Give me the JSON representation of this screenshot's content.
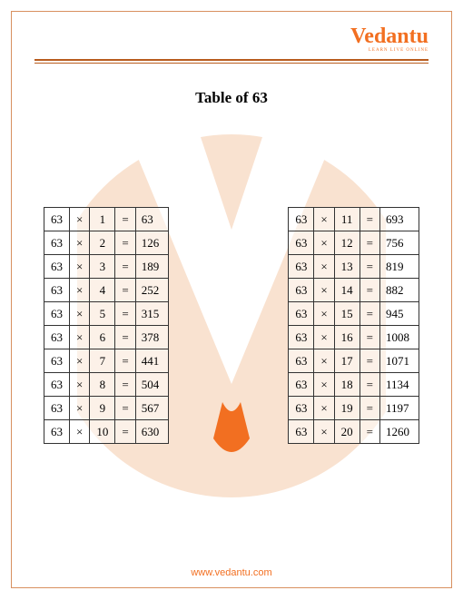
{
  "brand": {
    "name": "Vedantu",
    "tagline": "LEARN LIVE ONLINE",
    "color": "#f26f21"
  },
  "page": {
    "title": "Table of 63",
    "border_color": "#d89060",
    "rule_color": "#b85c1e"
  },
  "bg_shape": {
    "fill": "#f9e2d0",
    "accent": "#f26f21"
  },
  "multiplication": {
    "base": 63,
    "op": "×",
    "eq": "=",
    "left": [
      {
        "a": 63,
        "op": "×",
        "b": 1,
        "eq": "=",
        "r": 63
      },
      {
        "a": 63,
        "op": "×",
        "b": 2,
        "eq": "=",
        "r": 126
      },
      {
        "a": 63,
        "op": "×",
        "b": 3,
        "eq": "=",
        "r": 189
      },
      {
        "a": 63,
        "op": "×",
        "b": 4,
        "eq": "=",
        "r": 252
      },
      {
        "a": 63,
        "op": "×",
        "b": 5,
        "eq": "=",
        "r": 315
      },
      {
        "a": 63,
        "op": "×",
        "b": 6,
        "eq": "=",
        "r": 378
      },
      {
        "a": 63,
        "op": "×",
        "b": 7,
        "eq": "=",
        "r": 441
      },
      {
        "a": 63,
        "op": "×",
        "b": 8,
        "eq": "=",
        "r": 504
      },
      {
        "a": 63,
        "op": "×",
        "b": 9,
        "eq": "=",
        "r": 567
      },
      {
        "a": 63,
        "op": "×",
        "b": 10,
        "eq": "=",
        "r": 630
      }
    ],
    "right": [
      {
        "a": 63,
        "op": "×",
        "b": 11,
        "eq": "=",
        "r": 693
      },
      {
        "a": 63,
        "op": "×",
        "b": 12,
        "eq": "=",
        "r": 756
      },
      {
        "a": 63,
        "op": "×",
        "b": 13,
        "eq": "=",
        "r": 819
      },
      {
        "a": 63,
        "op": "×",
        "b": 14,
        "eq": "=",
        "r": 882
      },
      {
        "a": 63,
        "op": "×",
        "b": 15,
        "eq": "=",
        "r": 945
      },
      {
        "a": 63,
        "op": "×",
        "b": 16,
        "eq": "=",
        "r": 1008
      },
      {
        "a": 63,
        "op": "×",
        "b": 17,
        "eq": "=",
        "r": 1071
      },
      {
        "a": 63,
        "op": "×",
        "b": 18,
        "eq": "=",
        "r": 1134
      },
      {
        "a": 63,
        "op": "×",
        "b": 19,
        "eq": "=",
        "r": 1197
      },
      {
        "a": 63,
        "op": "×",
        "b": 20,
        "eq": "=",
        "r": 1260
      }
    ]
  },
  "footer": {
    "url": "www.vedantu.com"
  }
}
